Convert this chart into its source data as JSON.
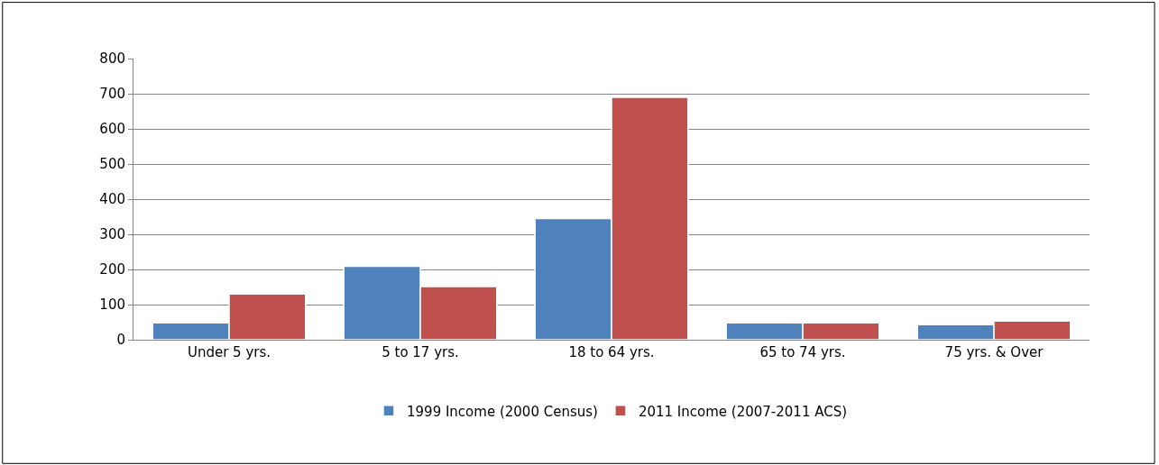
{
  "chart_data": {
    "type": "bar",
    "categories": [
      "Under 5 yrs.",
      "5 to 17 yrs.",
      "18 to 64 yrs.",
      "65 to 74 yrs.",
      "75 yrs. & Over"
    ],
    "series": [
      {
        "name": "1999 Income (2000 Census)",
        "color": "#4f81bd",
        "values": [
          48,
          209,
          345,
          48,
          43
        ]
      },
      {
        "name": "2011 Income (2007-2011 ACS)",
        "color": "#c0504d",
        "values": [
          130,
          151,
          690,
          48,
          53
        ]
      }
    ],
    "ylim": [
      0,
      800
    ],
    "yticks": [
      0,
      100,
      200,
      300,
      400,
      500,
      600,
      700,
      800
    ],
    "grid": "y",
    "legend": "bottom"
  }
}
